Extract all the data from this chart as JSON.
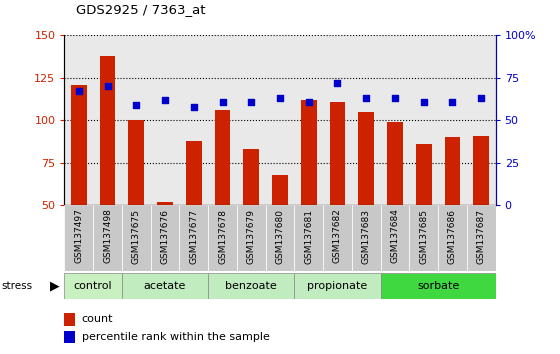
{
  "title": "GDS2925 / 7363_at",
  "samples": [
    "GSM137497",
    "GSM137498",
    "GSM137675",
    "GSM137676",
    "GSM137677",
    "GSM137678",
    "GSM137679",
    "GSM137680",
    "GSM137681",
    "GSM137682",
    "GSM137683",
    "GSM137684",
    "GSM137685",
    "GSM137686",
    "GSM137687"
  ],
  "counts": [
    121,
    138,
    100,
    52,
    88,
    106,
    83,
    68,
    112,
    111,
    105,
    99,
    86,
    90,
    91
  ],
  "percentile_ranks": [
    67,
    70,
    59,
    62,
    58,
    61,
    61,
    63,
    61,
    72,
    63,
    63,
    61,
    61,
    63
  ],
  "groups": [
    {
      "name": "control",
      "start": 0,
      "end": 2,
      "color": "#c8f0c0"
    },
    {
      "name": "acetate",
      "start": 2,
      "end": 5,
      "color": "#c0ecc0"
    },
    {
      "name": "benzoate",
      "start": 5,
      "end": 8,
      "color": "#c0ecc0"
    },
    {
      "name": "propionate",
      "start": 8,
      "end": 11,
      "color": "#c0ecc0"
    },
    {
      "name": "sorbate",
      "start": 11,
      "end": 15,
      "color": "#40d840"
    }
  ],
  "ylim_left": [
    50,
    150
  ],
  "ylim_right": [
    0,
    100
  ],
  "yticks_left": [
    50,
    75,
    100,
    125,
    150
  ],
  "yticks_right": [
    0,
    25,
    50,
    75,
    100
  ],
  "yticklabels_right": [
    "0",
    "25",
    "50",
    "75",
    "100%"
  ],
  "bar_color": "#cc2200",
  "dot_color": "#0000cc",
  "bar_bottom": 50,
  "stress_label": "stress",
  "legend_count": "count",
  "legend_pct": "percentile rank within the sample",
  "sample_bg_color": "#c8c8c8"
}
